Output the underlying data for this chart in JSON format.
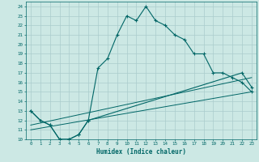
{
  "xlabel": "Humidex (Indice chaleur)",
  "bg_color": "#cce8e4",
  "grid_color": "#aacccc",
  "line_color": "#006666",
  "xlim": [
    -0.5,
    23.5
  ],
  "ylim": [
    10,
    24.5
  ],
  "xticks": [
    0,
    1,
    2,
    3,
    4,
    5,
    6,
    7,
    8,
    9,
    10,
    11,
    12,
    13,
    14,
    15,
    16,
    17,
    18,
    19,
    20,
    21,
    22,
    23
  ],
  "yticks": [
    10,
    11,
    12,
    13,
    14,
    15,
    16,
    17,
    18,
    19,
    20,
    21,
    22,
    23,
    24
  ],
  "line1_x": [
    0,
    1,
    2,
    3,
    4,
    5,
    6,
    7,
    8,
    9,
    10,
    11,
    12,
    13,
    14,
    15,
    16,
    17,
    18,
    19,
    20,
    21,
    22,
    23
  ],
  "line1_y": [
    13,
    12,
    11.5,
    10,
    10,
    10.5,
    12,
    17.5,
    18.5,
    21,
    23,
    22.5,
    24,
    22.5,
    22,
    21,
    20.5,
    19,
    19,
    17,
    17,
    16.5,
    16,
    15
  ],
  "line2_x": [
    0,
    1,
    2,
    3,
    4,
    5,
    6,
    22,
    23
  ],
  "line2_y": [
    13,
    12,
    11.5,
    10,
    10,
    10.5,
    12,
    17,
    15.5
  ],
  "line3_x": [
    0,
    23
  ],
  "line3_y": [
    11,
    15
  ],
  "line4_x": [
    0,
    23
  ],
  "line4_y": [
    11.5,
    16.5
  ]
}
